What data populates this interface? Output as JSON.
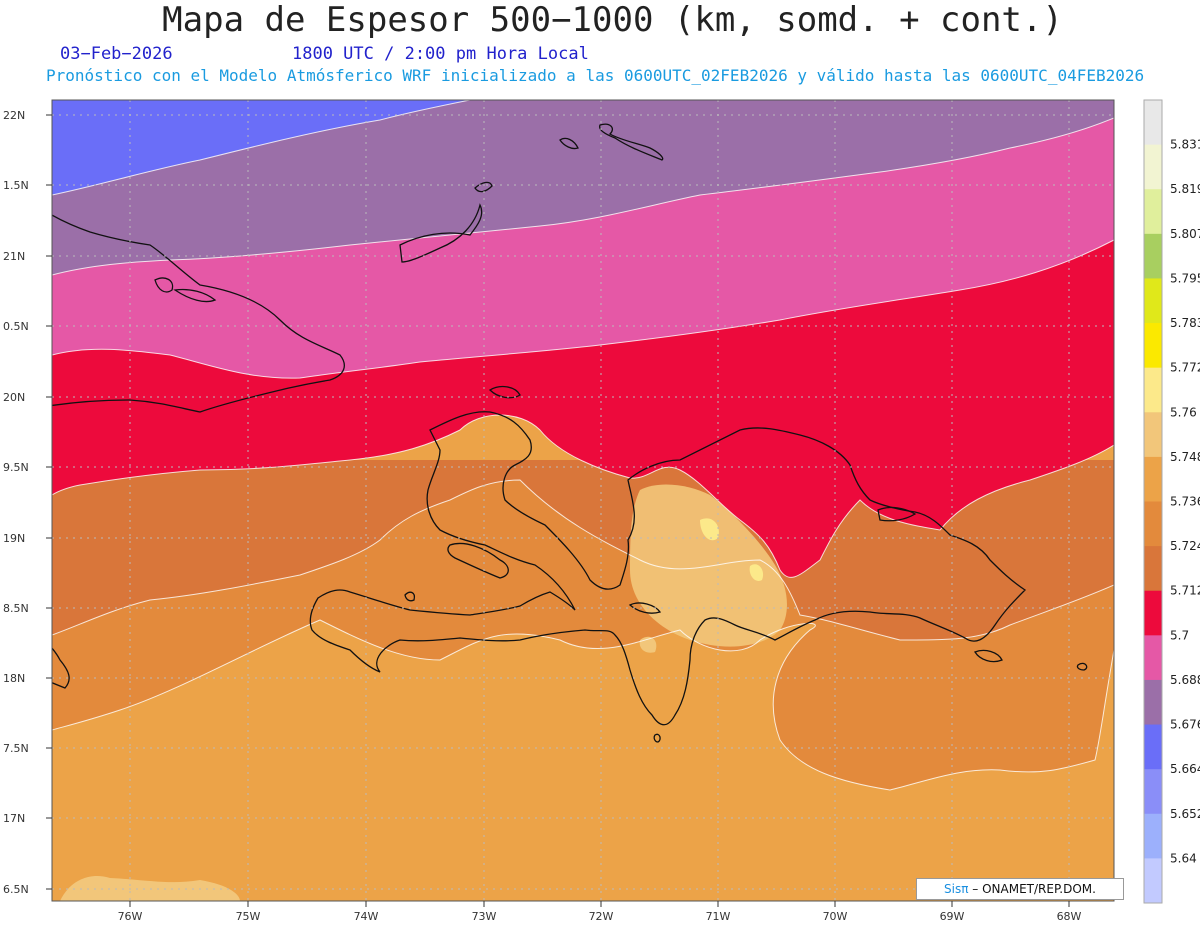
{
  "title": "Mapa de Espesor 500−1000 (km, somd. + cont.)",
  "date": "03−Feb−2026",
  "time": "1800 UTC / 2:00 pm Hora Local",
  "model": "Pronóstico con el Modelo Atmósferico WRF inicializado a las 0600UTC_02FEB2026 y válido hasta las  0600UTC_04FEB2026",
  "credit": {
    "brand": "Sisπ",
    "text": " – ONAMET/REP.DOM."
  },
  "lat_labels": [
    "22N",
    "1.5N",
    "21N",
    "0.5N",
    "20N",
    "9.5N",
    "19N",
    "8.5N",
    "18N",
    "7.5N",
    "17N",
    "6.5N"
  ],
  "lon_labels": [
    "76W",
    "75W",
    "74W",
    "73W",
    "72W",
    "71W",
    "70W",
    "69W",
    "68W"
  ],
  "colorbar": {
    "labels": [
      "5.831",
      "5.819",
      "5.807",
      "5.795",
      "5.783",
      "5.772",
      "5.76",
      "5.748",
      "5.736",
      "5.724",
      "5.712",
      "5.7",
      "5.688",
      "5.676",
      "5.664",
      "5.652",
      "5.64"
    ],
    "colors": [
      "#e8e8e8",
      "#f2f4d2",
      "#e0ef9c",
      "#a8cf60",
      "#e0e81a",
      "#fbe900",
      "#fce98a",
      "#f2c67a",
      "#eca348",
      "#e38a3c",
      "#d9763a",
      "#ed0a3c",
      "#e558a6",
      "#9b6fa8",
      "#6a6ef8",
      "#8a8ef8",
      "#9cb0fc",
      "#c2caff"
    ]
  }
}
